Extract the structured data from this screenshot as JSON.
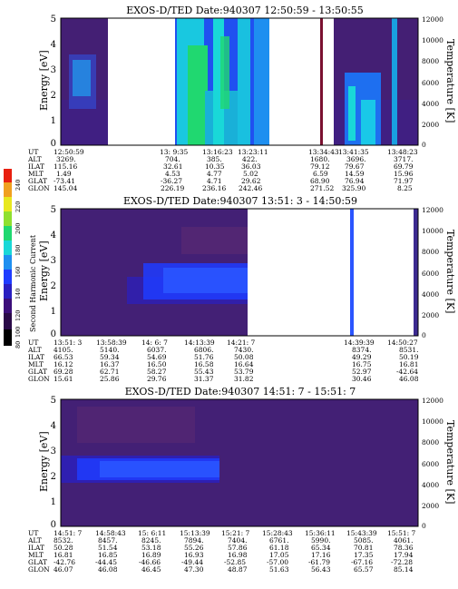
{
  "colors": {
    "scale": [
      "#000000",
      "#2a0a48",
      "#3c0f7a",
      "#2a1fc0",
      "#1f3cff",
      "#1e8ff0",
      "#19d8d8",
      "#20d870",
      "#8fe030",
      "#e8e820",
      "#f0a020",
      "#e82010"
    ]
  },
  "colorbar": {
    "label": "Second Harmonic Current",
    "ticks": [
      "240",
      "220",
      "200",
      "180",
      "160",
      "140",
      "120",
      "100",
      "80"
    ],
    "range": [
      80,
      240
    ]
  },
  "panels": [
    {
      "title": "EXOS-D/TED   Date:940307  12:50:59 - 13:50:55",
      "ylabel_left": "Energy [eV]",
      "ylabel_right": "Temperature [K]",
      "yticks_left": [
        "5",
        "4",
        "3",
        "2",
        "1",
        "0"
      ],
      "yticks_right": [
        "12000",
        "10000",
        "8000",
        "6000",
        "4000",
        "2000",
        "0"
      ],
      "row_labels": [
        "UT",
        "ALT",
        "ILAT",
        "MLT",
        "GLAT",
        "GLON"
      ],
      "columns": [
        {
          "UT": "12:50:59",
          "ALT": "3269.",
          "ILAT": "115.16",
          "MLT": "1.49",
          "GLAT": "-73.41",
          "GLON": "145.04"
        },
        {
          "UT": "13: 9:35",
          "ALT": "704.",
          "ILAT": "32.61",
          "MLT": "4.53",
          "GLAT": "-36.27",
          "GLON": "226.19"
        },
        {
          "UT": "13:16:23",
          "ALT": "385.",
          "ILAT": "10.35",
          "MLT": "4.77",
          "GLAT": "4.71",
          "GLON": "236.16"
        },
        {
          "UT": "13:23:11",
          "ALT": "422.",
          "ILAT": "36.03",
          "MLT": "5.02",
          "GLAT": "29.62",
          "GLON": "242.46"
        },
        {
          "UT": "13:34:43",
          "ALT": "1680.",
          "ILAT": "79.12",
          "MLT": "6.59",
          "GLAT": "68.90",
          "GLON": "271.52"
        },
        {
          "UT": "13:41:35",
          "ALT": "3696.",
          "ILAT": "79.67",
          "MLT": "14.59",
          "GLAT": "76.94",
          "GLON": "325.90"
        },
        {
          "UT": "13:48:23",
          "ALT": "3717.",
          "ILAT": "69.79",
          "MLT": "15.96",
          "GLAT": "71.97",
          "GLON": "8.25"
        }
      ]
    },
    {
      "title": "EXOS-D/TED   Date:940307  13:51: 3 - 14:50:59",
      "ylabel_left": "Energy [eV]",
      "ylabel_right": "Temperature [K]",
      "yticks_left": [
        "5",
        "4",
        "3",
        "2",
        "1",
        "0"
      ],
      "yticks_right": [
        "12000",
        "10000",
        "8000",
        "6000",
        "4000",
        "2000",
        "0"
      ],
      "row_labels": [
        "UT",
        "ALT",
        "ILAT",
        "MLT",
        "GLAT",
        "GLON"
      ],
      "columns": [
        {
          "UT": "13:51: 3",
          "ALT": "4105.",
          "ILAT": "66.53",
          "MLT": "16.12",
          "GLAT": "69.28",
          "GLON": "15.61"
        },
        {
          "UT": "13:58:39",
          "ALT": "5140.",
          "ILAT": "59.34",
          "MLT": "16.37",
          "GLAT": "62.71",
          "GLON": "25.86"
        },
        {
          "UT": "14: 6: 7",
          "ALT": "6037.",
          "ILAT": "54.69",
          "MLT": "16.50",
          "GLAT": "58.27",
          "GLON": "29.76"
        },
        {
          "UT": "14:13:39",
          "ALT": "6806.",
          "ILAT": "51.76",
          "MLT": "16.58",
          "GLAT": "55.43",
          "GLON": "31.37"
        },
        {
          "UT": "14:21: 7",
          "ALT": "7430.",
          "ILAT": "50.08",
          "MLT": "16.64",
          "GLAT": "53.79",
          "GLON": "31.82"
        },
        {
          "UT": "14:39:39",
          "ALT": "8374.",
          "ILAT": "49.29",
          "MLT": "16.75",
          "GLAT": "52.97",
          "GLON": "30.46"
        },
        {
          "UT": "14:50:27",
          "ALT": "8531.",
          "ILAT": "50.19",
          "MLT": "16.81",
          "GLAT": "-42.64",
          "GLON": "46.08"
        }
      ]
    },
    {
      "title": "EXOS-D/TED   Date:940307  14:51: 7 - 15:51: 7",
      "ylabel_left": "Energy [eV]",
      "ylabel_right": "Temperature [K]",
      "yticks_left": [
        "5",
        "4",
        "3",
        "2",
        "1",
        "0"
      ],
      "yticks_right": [
        "12000",
        "10000",
        "8000",
        "6000",
        "4000",
        "2000",
        "0"
      ],
      "row_labels": [
        "UT",
        "ALT",
        "ILAT",
        "MLT",
        "GLAT",
        "GLON"
      ],
      "columns": [
        {
          "UT": "14:51: 7",
          "ALT": "8532.",
          "ILAT": "50.28",
          "MLT": "16.81",
          "GLAT": "-42.76",
          "GLON": "46.07"
        },
        {
          "UT": "14:58:43",
          "ALT": "8457.",
          "ILAT": "51.54",
          "MLT": "16.85",
          "GLAT": "-44.45",
          "GLON": "46.08"
        },
        {
          "UT": "15: 6:11",
          "ALT": "8245.",
          "ILAT": "53.18",
          "MLT": "16.89",
          "GLAT": "-46.66",
          "GLON": "46.45"
        },
        {
          "UT": "15:13:39",
          "ALT": "7894.",
          "ILAT": "55.26",
          "MLT": "16.93",
          "GLAT": "-49.44",
          "GLON": "47.30"
        },
        {
          "UT": "15:21: 7",
          "ALT": "7404.",
          "ILAT": "57.86",
          "MLT": "16.98",
          "GLAT": "-52.85",
          "GLON": "48.87"
        },
        {
          "UT": "15:28:43",
          "ALT": "6761.",
          "ILAT": "61.18",
          "MLT": "17.05",
          "GLAT": "-57.00",
          "GLON": "51.63"
        },
        {
          "UT": "15:36:11",
          "ALT": "5990.",
          "ILAT": "65.34",
          "MLT": "17.16",
          "GLAT": "-61.79",
          "GLON": "56.43"
        },
        {
          "UT": "15:43:39",
          "ALT": "5085.",
          "ILAT": "70.81",
          "MLT": "17.35",
          "GLAT": "-67.16",
          "GLON": "65.57"
        },
        {
          "UT": "15:51: 7",
          "ALT": "4061.",
          "ILAT": "78.36",
          "MLT": "17.94",
          "GLAT": "-72.28",
          "GLON": "85.14"
        }
      ]
    }
  ],
  "chart_data": [
    {
      "type": "heatmap",
      "title": "EXOS-D/TED   Date:940307  12:50:59 - 13:50:55",
      "ylabel": "Energy [eV]",
      "y2label": "Temperature [K]",
      "ylim": [
        0,
        5
      ],
      "y2lim": [
        0,
        12000
      ],
      "x_range": [
        "12:50:59",
        "13:50:55"
      ],
      "data_gaps": [
        [
          "12:57",
          "13:09"
        ],
        [
          "13:29",
          "13:34"
        ],
        [
          "13:35",
          "13:38"
        ]
      ],
      "color_scale": {
        "label": "Second Harmonic Current",
        "range": [
          80,
          240
        ]
      }
    },
    {
      "type": "heatmap",
      "title": "EXOS-D/TED   Date:940307  13:51: 3 - 14:50:59",
      "ylabel": "Energy [eV]",
      "y2label": "Temperature [K]",
      "ylim": [
        0,
        5
      ],
      "y2lim": [
        0,
        12000
      ],
      "x_range": [
        "13:51: 3",
        "14:50:59"
      ],
      "data_gaps": [
        [
          "14:22",
          "14:39"
        ],
        [
          "14:40",
          "14:49"
        ]
      ],
      "color_scale": {
        "label": "Second Harmonic Current",
        "range": [
          80,
          240
        ]
      }
    },
    {
      "type": "heatmap",
      "title": "EXOS-D/TED   Date:940307  14:51: 7 - 15:51: 7",
      "ylabel": "Energy [eV]",
      "y2label": "Temperature [K]",
      "ylim": [
        0,
        5
      ],
      "y2lim": [
        0,
        12000
      ],
      "x_range": [
        "14:51: 7",
        "15:51: 7"
      ],
      "data_gaps": [],
      "color_scale": {
        "label": "Second Harmonic Current",
        "range": [
          80,
          240
        ]
      }
    }
  ]
}
